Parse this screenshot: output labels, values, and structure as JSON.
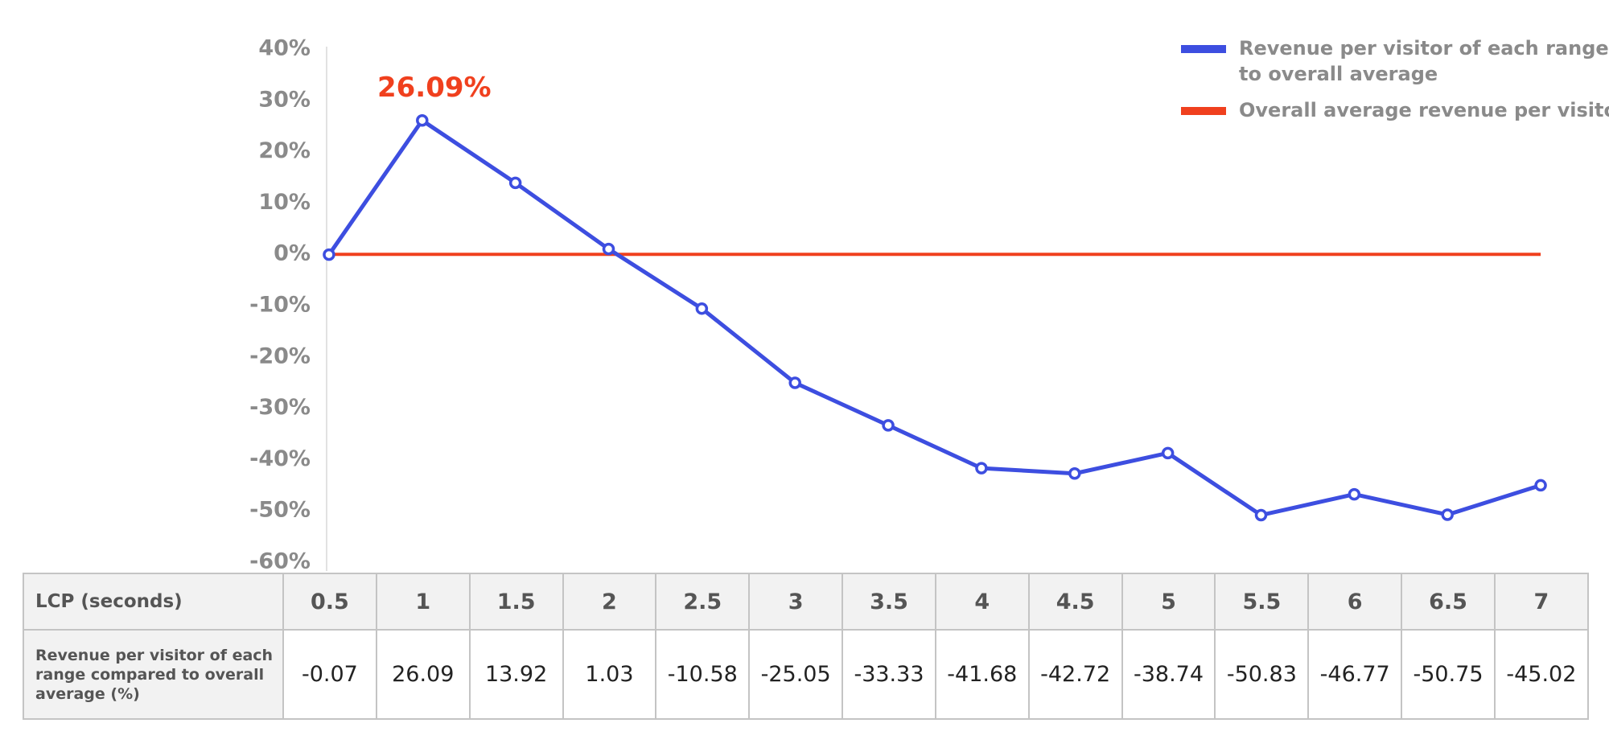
{
  "chart_data": {
    "type": "line",
    "annotation": "26.09%",
    "x_label": "LCP (seconds)",
    "table_row_label": "Revenue per visitor of each range compared to overall average (%)",
    "x": [
      0.5,
      1,
      1.5,
      2,
      2.5,
      3,
      3.5,
      4,
      4.5,
      5,
      5.5,
      6,
      6.5,
      7
    ],
    "xlim": [
      0.25,
      7.25
    ],
    "series": [
      {
        "name": "Revenue per visitor of each range compared to overall average",
        "color": "#3d4ee0",
        "values": [
          -0.07,
          26.09,
          13.92,
          1.03,
          -10.58,
          -25.05,
          -33.33,
          -41.68,
          -42.72,
          -38.74,
          -50.83,
          -46.77,
          -50.75,
          -45.02
        ]
      },
      {
        "name": "Overall average revenue per visitor",
        "color": "#f0401e",
        "values": [
          0,
          0,
          0,
          0,
          0,
          0,
          0,
          0,
          0,
          0,
          0,
          0,
          0,
          0
        ]
      }
    ],
    "ylim": [
      -60,
      40
    ],
    "yticks": [
      {
        "value": 40,
        "label": "40%"
      },
      {
        "value": 30,
        "label": "30%"
      },
      {
        "value": 20,
        "label": "20%"
      },
      {
        "value": 10,
        "label": "10%"
      },
      {
        "value": 0,
        "label": "0%"
      },
      {
        "value": -10,
        "label": "-10%"
      },
      {
        "value": -20,
        "label": "-20%"
      },
      {
        "value": -30,
        "label": "-30%"
      },
      {
        "value": -40,
        "label": "-40%"
      },
      {
        "value": -50,
        "label": "-50%"
      },
      {
        "value": -60,
        "label": "-60%"
      }
    ],
    "legend": "top-right",
    "grid": false
  }
}
